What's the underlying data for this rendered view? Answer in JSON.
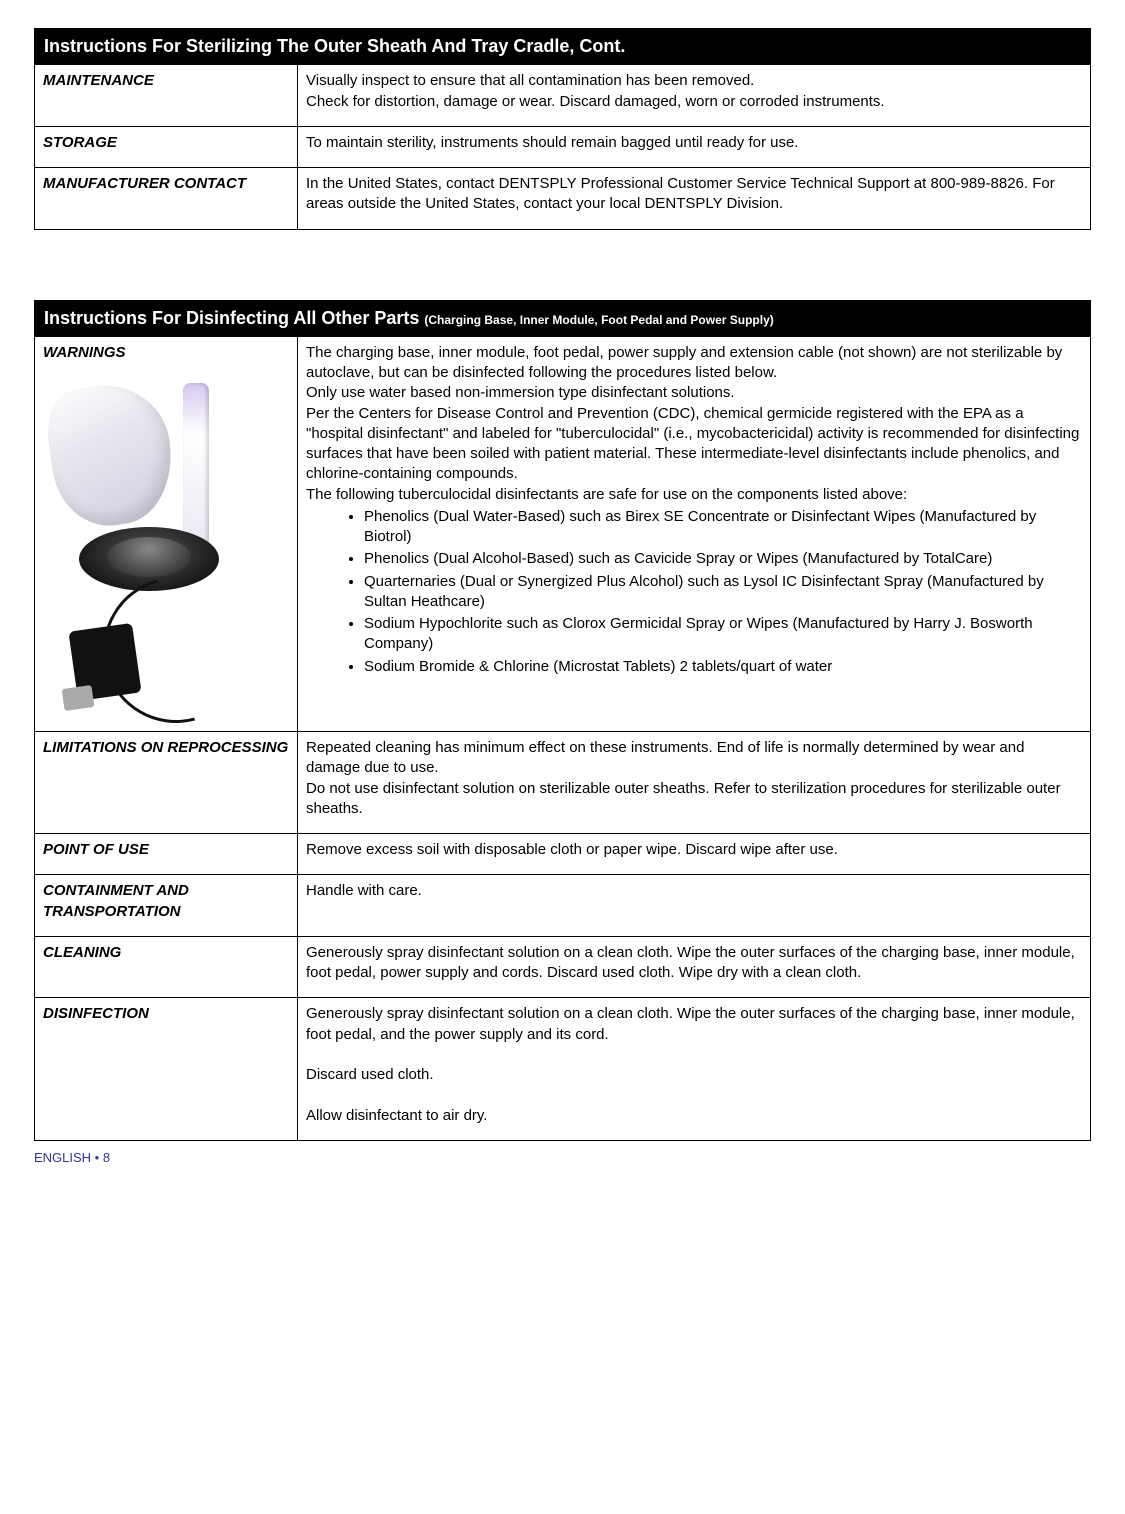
{
  "colors": {
    "header_bg": "#000000",
    "header_text": "#ffffff",
    "body_text": "#000000",
    "border": "#000000",
    "footer": "#333399",
    "page_bg": "#ffffff"
  },
  "typography": {
    "body_fontsize_pt": 11,
    "header_fontsize_pt": 14,
    "label_style": "bold italic"
  },
  "section1": {
    "title": "Instructions For Sterilizing The Outer Sheath And Tray Cradle, Cont.",
    "rows": [
      {
        "label": "MAINTENANCE",
        "text": "Visually inspect to ensure that all contamination has been removed.\nCheck for distortion, damage or wear.  Discard damaged, worn or corroded instruments."
      },
      {
        "label": "STORAGE",
        "text": "To maintain sterility, instruments should remain bagged until ready for use."
      },
      {
        "label": "MANUFACTURER CONTACT",
        "text": "In the United States, contact DENTSPLY Professional Customer Service Technical Support at 800-989-8826. For areas outside the United States, contact your local DENTSPLY Division."
      }
    ]
  },
  "section2": {
    "title_main": "Instructions For Disinfecting All Other Parts ",
    "title_sub": "(Charging Base, Inner Module, Foot Pedal and Power Supply)",
    "rows": [
      {
        "label": "WARNINGS",
        "has_image": true,
        "text_intro": "The charging base, inner module, foot pedal, power supply and extension cable (not shown) are not sterilizable by autoclave, but can be disinfected following the procedures listed below.\nOnly use water based non-immersion type disinfectant solutions.\nPer the Centers for Disease Control and Prevention (CDC), chemical germicide registered with the EPA as a \"hospital disinfectant\" and labeled for \"tuberculocidal\" (i.e., mycobactericidal) activity is recommended for disinfecting surfaces that have been soiled with patient material. These intermediate-level disinfectants include phenolics, and chlorine-containing compounds.\nThe following tuberculocidal disinfectants are safe for use on the components listed above:",
        "bullets": [
          "Phenolics (Dual Water-Based) such as Birex SE Concentrate or Disinfectant Wipes (Manufactured by Biotrol)",
          "Phenolics (Dual Alcohol-Based) such as Cavicide Spray or Wipes (Manufactured by TotalCare)",
          "Quarternaries (Dual or Synergized Plus Alcohol) such as Lysol IC Disinfectant Spray (Manufactured by Sultan Heathcare)",
          "Sodium Hypochlorite such as Clorox Germicidal Spray or Wipes (Manufactured by Harry J. Bosworth Company)",
          "Sodium Bromide & Chlorine (Microstat Tablets) 2 tablets/quart of water"
        ]
      },
      {
        "label": "LIMITATIONS ON REPROCESSING",
        "text": "Repeated cleaning has minimum effect on these instruments. End of life is normally determined by wear and damage due to use.\nDo not use disinfectant solution on sterilizable outer sheaths. Refer to sterilization procedures for sterilizable outer sheaths."
      },
      {
        "label": "POINT OF USE",
        "text": "Remove excess soil with disposable cloth or paper wipe. Discard wipe after use."
      },
      {
        "label": "CONTAINMENT AND TRANSPORTATION",
        "text": "Handle with care."
      },
      {
        "label": "CLEANING",
        "text": "Generously spray disinfectant solution on a clean cloth. Wipe the outer surfaces of the charging base, inner module, foot pedal, power supply and cords.  Discard used cloth. Wipe dry with a clean cloth."
      },
      {
        "label": "DISINFECTION",
        "text": "Generously spray disinfectant solution on a clean cloth. Wipe the outer surfaces of the charging base, inner module, foot pedal, and the power supply and its cord.\n\nDiscard used cloth.\n\nAllow disinfectant to air dry."
      }
    ]
  },
  "footer": "ENGLISH • 8"
}
